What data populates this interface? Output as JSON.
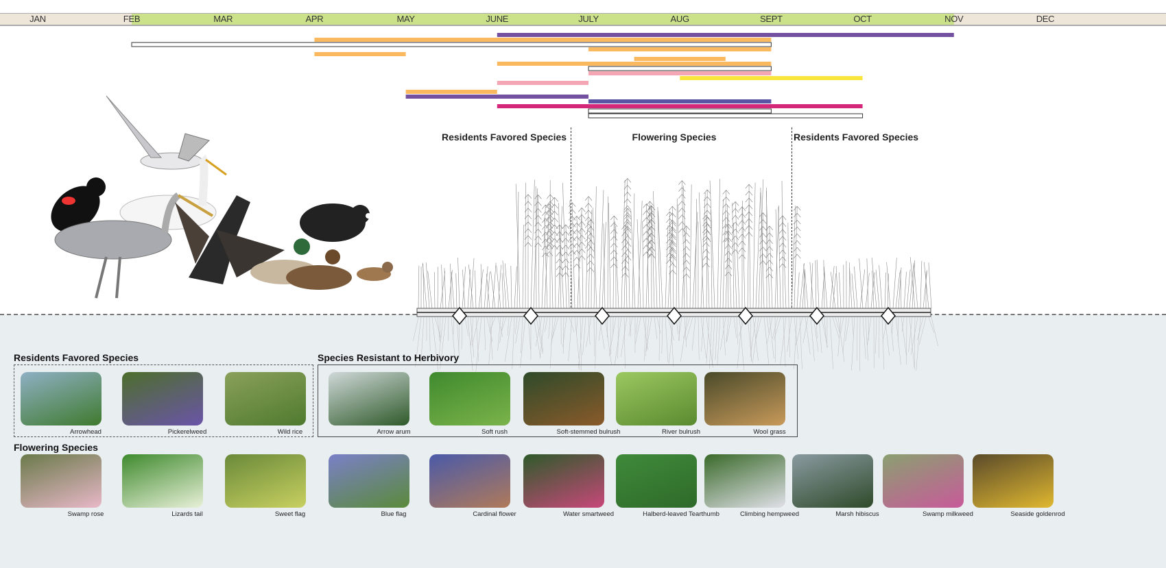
{
  "months": [
    "JAN",
    "FEB",
    "MAR",
    "APR",
    "MAY",
    "JUNE",
    "JULY",
    "AUG",
    "SEPT",
    "OCT",
    "NOV",
    "DEC"
  ],
  "growing_season": {
    "start": 2,
    "end": 11
  },
  "colors": {
    "orange": "#fbb95f",
    "purple": "#7350a0",
    "pink": "#f4a6b4",
    "yellow": "#f8e63c",
    "magenta": "#d6287a",
    "blue": "#5b55a6",
    "outline": "#ffffff",
    "season": "#cce28a",
    "offseason": "#efe6da",
    "water": "#e9eef1"
  },
  "timeline_bars": [
    {
      "color": "purple",
      "start": 6,
      "end": 11
    },
    {
      "color": "orange",
      "start": 4,
      "end": 9
    },
    {
      "color": "outline",
      "start": 2,
      "end": 9
    },
    {
      "color": "orange",
      "start": 7,
      "end": 9
    },
    {
      "color": "orange",
      "start": 4,
      "end": 5
    },
    {
      "color": "orange",
      "start": 7.5,
      "end": 8.5
    },
    {
      "color": "orange",
      "start": 6,
      "end": 9
    },
    {
      "color": "outline",
      "start": 7,
      "end": 9
    },
    {
      "color": "pink",
      "start": 7,
      "end": 9
    },
    {
      "color": "yellow",
      "start": 8,
      "end": 10
    },
    {
      "color": "pink",
      "start": 6,
      "end": 7
    },
    {
      "color": "orange",
      "start": 5,
      "end": 6
    },
    {
      "color": "purple",
      "start": 5,
      "end": 7
    },
    {
      "color": "blue",
      "start": 7,
      "end": 9
    },
    {
      "color": "magenta",
      "start": 6,
      "end": 10
    },
    {
      "color": "outline",
      "start": 7,
      "end": 9
    },
    {
      "color": "outline",
      "start": 7,
      "end": 10
    }
  ],
  "section_labels": {
    "left": "Residents Favored Species",
    "center": "Flowering Species",
    "right": "Residents Favored Species"
  },
  "groups": {
    "residents": {
      "title": "Residents Favored Species",
      "species": [
        {
          "name": "Arrowhead",
          "colors": [
            "#8fb0c4",
            "#3f7a2e"
          ]
        },
        {
          "name": "Pickerelweed",
          "colors": [
            "#4d6e2c",
            "#6a54a8"
          ]
        },
        {
          "name": "Wild rice",
          "colors": [
            "#8aa05a",
            "#4f7a2f"
          ]
        }
      ]
    },
    "herbivory": {
      "title": "Species Resistant to Herbivory",
      "species": [
        {
          "name": "Arrow arum",
          "colors": [
            "#cfd8d8",
            "#2f5a2a"
          ]
        },
        {
          "name": "Soft rush",
          "colors": [
            "#3f8a2e",
            "#7bb34a"
          ]
        },
        {
          "name": "Soft-stemmed bulrush",
          "colors": [
            "#2e4a2a",
            "#8a5a2a"
          ]
        },
        {
          "name": "River bulrush",
          "colors": [
            "#9cc860",
            "#5a8a30"
          ]
        },
        {
          "name": "Wool grass",
          "colors": [
            "#4a4a2a",
            "#c89a5a"
          ]
        }
      ]
    },
    "flowering": {
      "title": "Flowering Species",
      "species": [
        {
          "name": "Swamp rose",
          "colors": [
            "#6a7a4a",
            "#e8b8c8"
          ]
        },
        {
          "name": "Lizards tail",
          "colors": [
            "#3f8a2e",
            "#e8f0d8"
          ]
        },
        {
          "name": "Sweet flag",
          "colors": [
            "#6a8a3a",
            "#c8d060"
          ]
        },
        {
          "name": "Blue flag",
          "colors": [
            "#7a80c8",
            "#5a8a3a"
          ]
        },
        {
          "name": "Cardinal flower",
          "colors": [
            "#4a5aa8",
            "#b07a5a"
          ]
        },
        {
          "name": "Water smartweed",
          "colors": [
            "#2e5a2a",
            "#c8487a"
          ]
        },
        {
          "name": "Halberd-leaved Tearthumb",
          "colors": [
            "#3f8a3a",
            "#2e6a2a"
          ]
        },
        {
          "name": "Climbing hempweed",
          "colors": [
            "#3a6a2a",
            "#e0e0e8"
          ]
        },
        {
          "name": "Marsh hibiscus",
          "colors": [
            "#8a9aa0",
            "#2e4a2a"
          ]
        },
        {
          "name": "Swamp milkweed",
          "colors": [
            "#8aa070",
            "#c85a9a"
          ]
        },
        {
          "name": "Seaside goldenrod",
          "colors": [
            "#5a4a2a",
            "#e0b830"
          ]
        }
      ]
    }
  }
}
